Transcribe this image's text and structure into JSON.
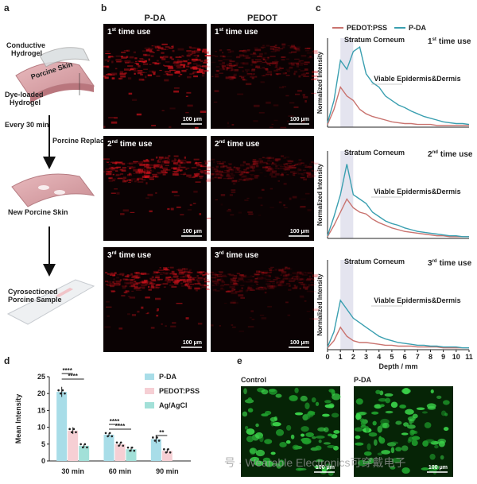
{
  "figure": {
    "a": {
      "letter": "a",
      "conductive": [
        "Conductive",
        "Hydrogel"
      ],
      "skin": "Porcine Skin",
      "dye": [
        "Dye-loaded",
        "Hydrogel"
      ],
      "every": "Every 30 min",
      "replace": "Porcine Replace",
      "new": "New Porcine Skin",
      "sample": [
        "Cyrosectioned",
        "Porcine Sample"
      ]
    },
    "b": {
      "letter": "b",
      "columns": [
        "P-DA",
        "PEDOT"
      ],
      "uses": [
        [
          "1",
          "st",
          "time use"
        ],
        [
          "2",
          "nd",
          "time use"
        ],
        [
          "3",
          "rd",
          "time use"
        ]
      ],
      "scale": "100 μm"
    },
    "c": {
      "letter": "c"
    },
    "d": {
      "letter": "d"
    },
    "e": {
      "letter": "e",
      "labels": [
        "Control",
        "P-DA"
      ],
      "scale": "100 μm"
    },
    "watermark": "号 · Wearable Electronics可穿戴电子"
  },
  "chart_data": [
    {
      "type": "bar",
      "ylabel": "Mean Intensity",
      "categories": [
        "30 min",
        "60 min",
        "90 min"
      ],
      "series": [
        {
          "name": "P-DA",
          "color": "#a8dde8",
          "values": [
            20.5,
            7.8,
            6.5
          ],
          "errors": [
            1.5,
            0.5,
            1.2
          ]
        },
        {
          "name": "PEDOT:PSS",
          "color": "#f6cfd4",
          "values": [
            9,
            5,
            3
          ],
          "errors": [
            1,
            0.4,
            0.6
          ]
        },
        {
          "name": "Ag/AgCl",
          "color": "#a2e0d8",
          "values": [
            4.5,
            3.5,
            null
          ],
          "errors": [
            0.4,
            0.7,
            null
          ]
        }
      ],
      "ylim": [
        0,
        25
      ],
      "yticks": [
        0,
        5,
        10,
        15,
        20,
        25
      ],
      "significance": [
        "****",
        "****",
        "****",
        "****",
        "**"
      ]
    },
    {
      "type": "line",
      "title": [
        "1",
        "st",
        "time use"
      ],
      "region1": "Stratum Corneum",
      "region2": "Viable Epidermis&Dermis",
      "ylabel": "Normalized Intensity",
      "x": [
        0,
        0.5,
        1,
        1.5,
        2,
        2.5,
        3,
        3.5,
        4,
        4.5,
        5,
        5.5,
        6,
        6.5,
        7,
        7.5,
        8,
        8.5,
        9,
        9.5,
        10,
        10.5,
        11
      ],
      "series": [
        {
          "name": "PEDOT:PSS",
          "color": "#c9736f",
          "values": [
            0.03,
            0.2,
            0.45,
            0.35,
            0.3,
            0.2,
            0.15,
            0.12,
            0.1,
            0.08,
            0.06,
            0.05,
            0.04,
            0.04,
            0.03,
            0.03,
            0.03,
            0.02,
            0.02,
            0.02,
            0.02,
            0.02,
            0.02
          ]
        },
        {
          "name": "P-DA",
          "color": "#3a9fb0",
          "values": [
            0.05,
            0.3,
            0.75,
            0.65,
            0.85,
            0.9,
            0.6,
            0.5,
            0.45,
            0.35,
            0.3,
            0.25,
            0.22,
            0.18,
            0.15,
            0.12,
            0.1,
            0.08,
            0.06,
            0.05,
            0.04,
            0.04,
            0.03
          ]
        }
      ],
      "xlim": [
        0,
        11
      ],
      "ylim": [
        0,
        1
      ]
    },
    {
      "type": "line",
      "title": [
        "2",
        "nd",
        "time use"
      ],
      "region1": "Stratum Corneum",
      "region2": "Viable Epidermis&Dermis",
      "ylabel": "Normalized Intensity",
      "x": [
        0,
        0.5,
        1,
        1.5,
        2,
        2.5,
        3,
        3.5,
        4,
        4.5,
        5,
        5.5,
        6,
        6.5,
        7,
        7.5,
        8,
        8.5,
        9,
        9.5,
        10,
        10.5,
        11
      ],
      "series": [
        {
          "color": "#c9736f",
          "values": [
            0.02,
            0.15,
            0.3,
            0.45,
            0.35,
            0.3,
            0.28,
            0.22,
            0.18,
            0.15,
            0.12,
            0.1,
            0.08,
            0.07,
            0.06,
            0.05,
            0.04,
            0.03,
            0.03,
            0.02,
            0.02,
            0.02,
            0.02
          ]
        },
        {
          "color": "#3a9fb0",
          "values": [
            0.03,
            0.25,
            0.5,
            0.85,
            0.5,
            0.45,
            0.4,
            0.3,
            0.25,
            0.2,
            0.17,
            0.15,
            0.12,
            0.1,
            0.08,
            0.07,
            0.06,
            0.05,
            0.04,
            0.03,
            0.03,
            0.02,
            0.02
          ]
        }
      ],
      "xlim": [
        0,
        11
      ],
      "ylim": [
        0,
        1
      ]
    },
    {
      "type": "line",
      "title": [
        "3",
        "rd",
        "time use"
      ],
      "region1": "Stratum Corneum",
      "region2": "Viable Epidermis&Dermis",
      "ylabel": "Normalized Intensity",
      "xlabel": "Depth / mm",
      "x": [
        0,
        0.5,
        1,
        1.5,
        2,
        2.5,
        3,
        3.5,
        4,
        4.5,
        5,
        5.5,
        6,
        6.5,
        7,
        7.5,
        8,
        8.5,
        9,
        9.5,
        10,
        10.5,
        11
      ],
      "series": [
        {
          "color": "#c9736f",
          "values": [
            0.02,
            0.1,
            0.25,
            0.15,
            0.1,
            0.08,
            0.08,
            0.07,
            0.06,
            0.05,
            0.05,
            0.04,
            0.04,
            0.04,
            0.03,
            0.03,
            0.03,
            0.03,
            0.02,
            0.02,
            0.02,
            0.02,
            0.02
          ]
        },
        {
          "color": "#3a9fb0",
          "values": [
            0.03,
            0.2,
            0.55,
            0.45,
            0.35,
            0.3,
            0.25,
            0.2,
            0.15,
            0.12,
            0.1,
            0.08,
            0.07,
            0.06,
            0.05,
            0.05,
            0.04,
            0.04,
            0.03,
            0.03,
            0.03,
            0.02,
            0.02
          ]
        }
      ],
      "xlim": [
        0,
        11
      ],
      "ylim": [
        0,
        1
      ],
      "xticks": [
        0,
        1,
        2,
        3,
        4,
        5,
        6,
        7,
        8,
        9,
        10,
        11
      ]
    }
  ]
}
